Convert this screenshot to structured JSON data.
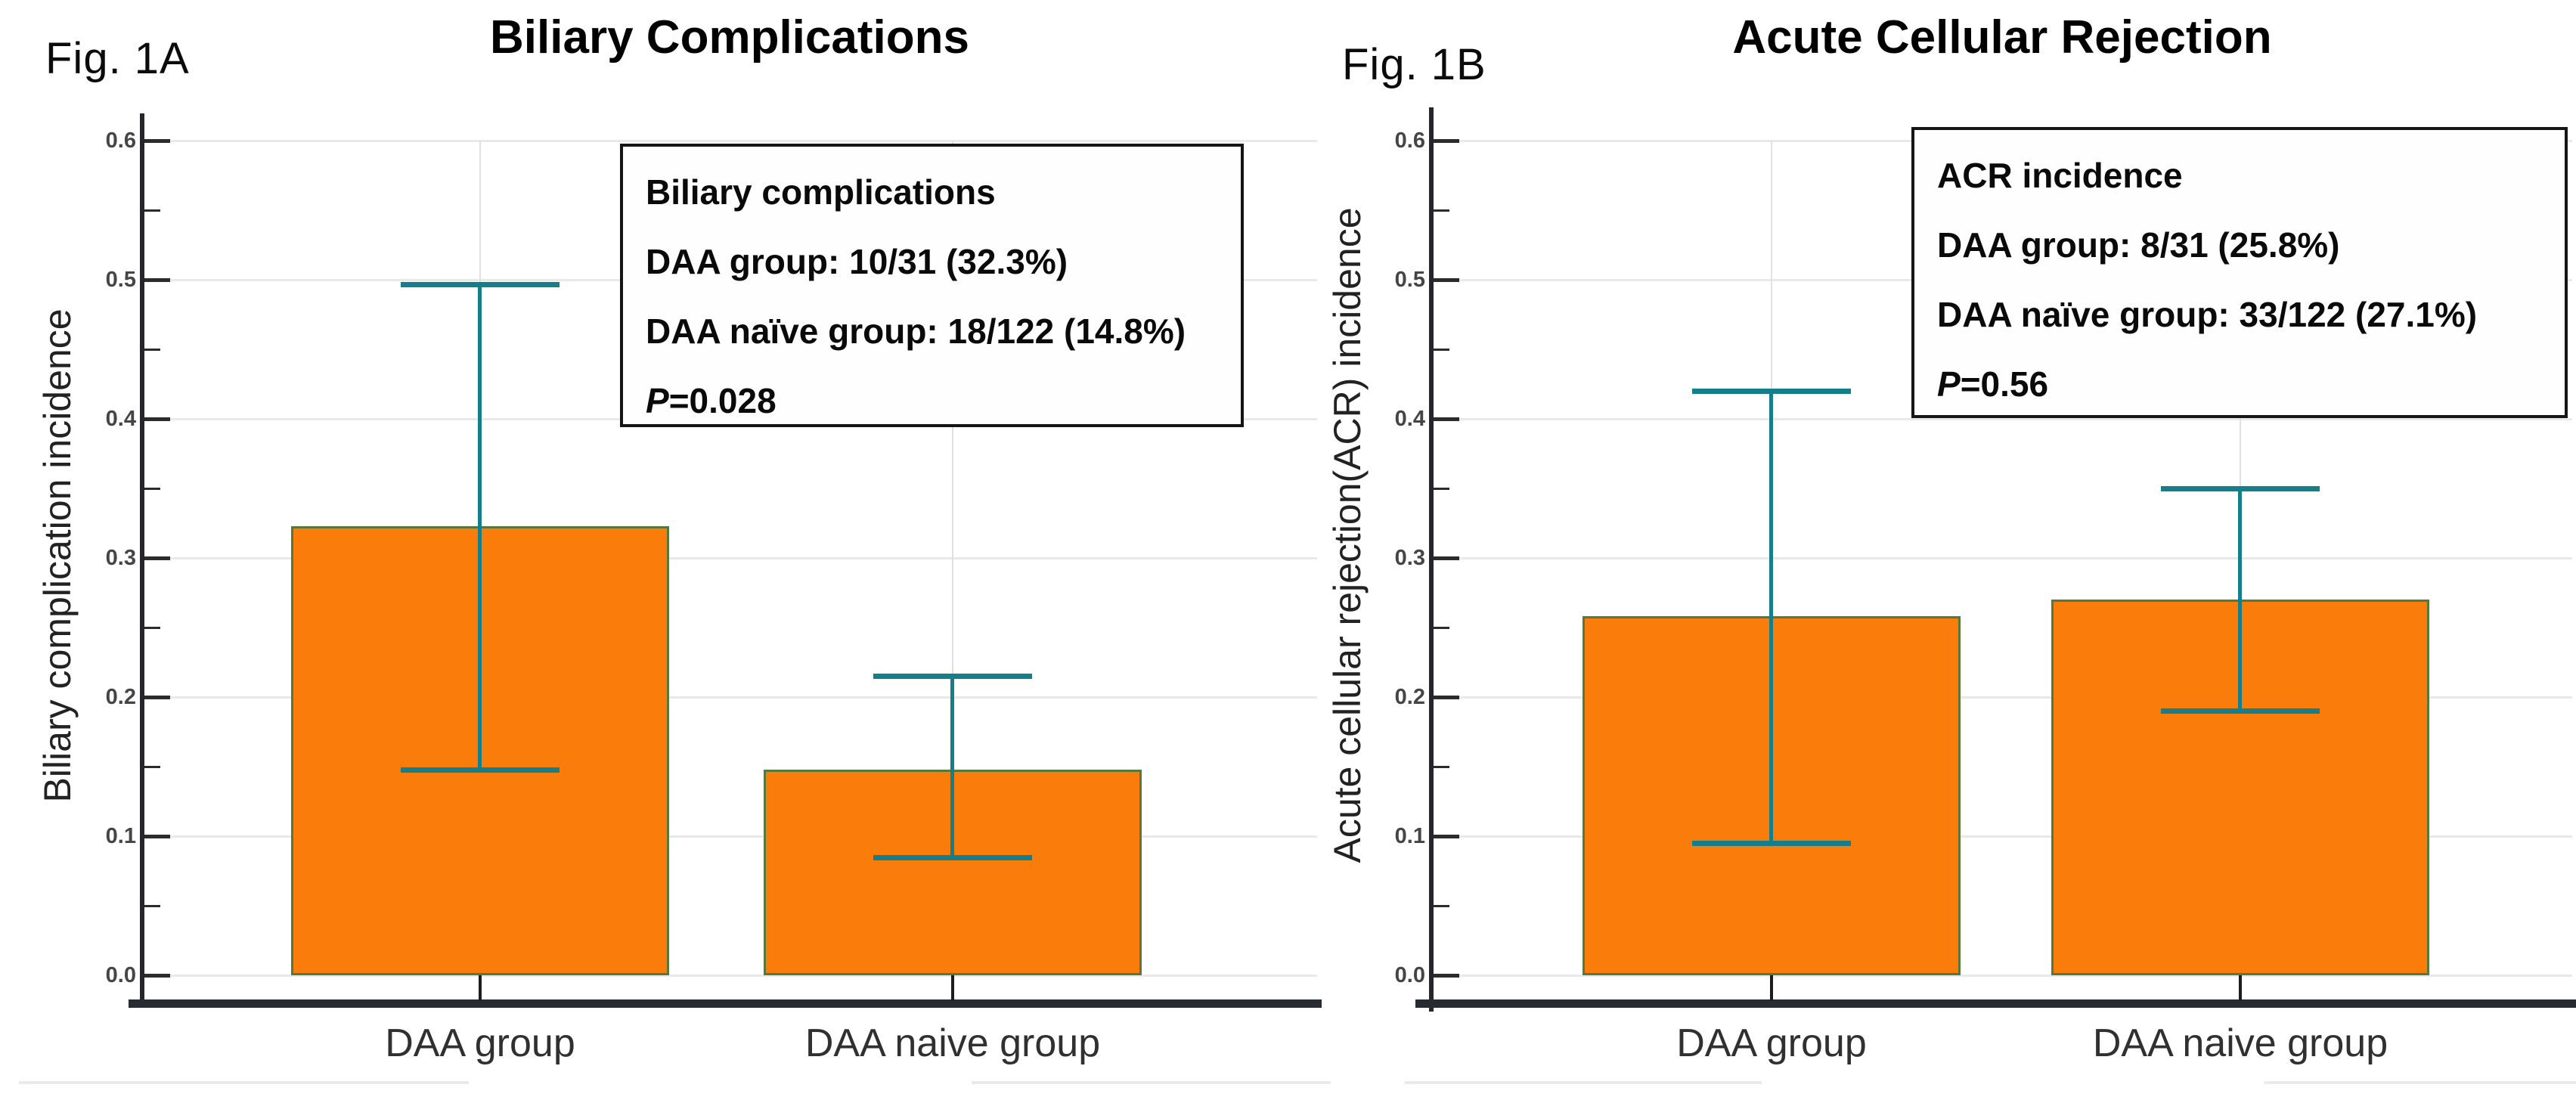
{
  "colors": {
    "bar_fill": "#FA7D0B",
    "bar_edge": "#55793B",
    "error_bar": "#147E8A",
    "gridline": "#E8E9EB",
    "axis": "#26262B"
  },
  "panels": [
    {
      "fig_label": "Fig. 1A",
      "title": "Biliary Complications",
      "y_axis_title": "Biliary complication incidence",
      "x_labels": [
        "DAA group",
        "DAA naive group"
      ],
      "annotation": {
        "line1": "Biliary complications",
        "line2": "DAA group: 10/31 (32.3%)",
        "line3": "DAA naïve group: 18/122 (14.8%)",
        "p_symbol": "P",
        "p_rest": "=0.028"
      }
    },
    {
      "fig_label": "Fig. 1B",
      "title": "Acute Cellular Rejection",
      "y_axis_title": "Acute cellular rejection(ACR) incidence",
      "x_labels": [
        "DAA group",
        "DAA naive group"
      ],
      "annotation": {
        "line1": "ACR incidence",
        "line2": "DAA group: 8/31 (25.8%)",
        "line3": "DAA naïve group: 33/122 (27.1%)",
        "p_symbol": "P",
        "p_rest": "=0.56"
      }
    }
  ],
  "chart_data": [
    {
      "type": "bar",
      "title": "Biliary Complications",
      "ylabel": "Biliary complication incidence",
      "xlabel": "",
      "categories": [
        "DAA group",
        "DAA naive group"
      ],
      "values": [
        0.323,
        0.148
      ],
      "error_low": [
        0.148,
        0.085
      ],
      "error_high": [
        0.497,
        0.215
      ],
      "ylim": [
        0,
        0.6
      ],
      "y_ticks": [
        0,
        0.1,
        0.2,
        0.3,
        0.4,
        0.5,
        0.6
      ],
      "minor_ticks": [
        0.05,
        0.15,
        0.25,
        0.35,
        0.45,
        0.55
      ],
      "grid": true,
      "legend": "none",
      "annotation_lines": [
        "Biliary complications",
        "DAA group: 10/31 (32.3%)",
        "DAA naïve group: 18/122 (14.8%)",
        "P=0.028"
      ],
      "p_value": 0.028
    },
    {
      "type": "bar",
      "title": "Acute Cellular Rejection",
      "ylabel": "Acute cellular rejection(ACR) incidence",
      "xlabel": "",
      "categories": [
        "DAA group",
        "DAA naive group"
      ],
      "values": [
        0.258,
        0.27
      ],
      "error_low": [
        0.095,
        0.19
      ],
      "error_high": [
        0.42,
        0.35
      ],
      "ylim": [
        0,
        0.6
      ],
      "y_ticks": [
        0,
        0.1,
        0.2,
        0.3,
        0.4,
        0.5,
        0.6
      ],
      "minor_ticks": [
        0.05,
        0.15,
        0.25,
        0.35,
        0.45,
        0.55
      ],
      "grid": true,
      "legend": "none",
      "annotation_lines": [
        "ACR incidence",
        "DAA group: 8/31 (25.8%)",
        "DAA naïve group: 33/122 (27.1%)",
        "P=0.56"
      ],
      "p_value": 0.56
    }
  ]
}
